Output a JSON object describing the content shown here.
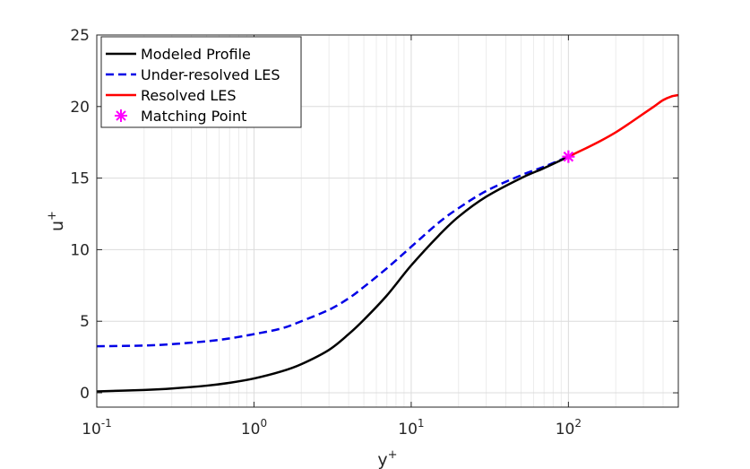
{
  "chart_data": {
    "type": "line",
    "xscale": "log",
    "xlim": [
      0.1,
      500
    ],
    "ylim": [
      -1,
      25
    ],
    "xlabel": "y",
    "xlabel_sup": "+",
    "ylabel": "u",
    "ylabel_sup": "+",
    "grid": true,
    "legend_position": "top-left",
    "x_ticks": [
      {
        "value": 0.1,
        "base": "10",
        "exp": "-1"
      },
      {
        "value": 1,
        "base": "10",
        "exp": "0"
      },
      {
        "value": 10,
        "base": "10",
        "exp": "1"
      },
      {
        "value": 100,
        "base": "10",
        "exp": "2"
      }
    ],
    "y_ticks": [
      0,
      5,
      10,
      15,
      20,
      25
    ],
    "series": [
      {
        "name": "Modeled Profile",
        "color": "#000000",
        "style": "solid",
        "x": [
          0.1,
          0.2,
          0.3,
          0.5,
          0.7,
          1,
          1.5,
          2,
          3,
          4,
          5,
          7,
          10,
          15,
          20,
          30,
          50,
          70,
          100
        ],
        "y": [
          0.1,
          0.2,
          0.3,
          0.5,
          0.7,
          1.0,
          1.5,
          2.0,
          3.0,
          4.1,
          5.1,
          6.8,
          8.9,
          11.0,
          12.3,
          13.7,
          15.0,
          15.7,
          16.5
        ]
      },
      {
        "name": "Under-resolved LES",
        "color": "#0000e6",
        "style": "dashed",
        "x": [
          0.1,
          0.2,
          0.3,
          0.5,
          0.7,
          1,
          1.5,
          2,
          3,
          4,
          5,
          7,
          10,
          15,
          20,
          30,
          50,
          70,
          100
        ],
        "y": [
          3.25,
          3.3,
          3.4,
          3.6,
          3.8,
          4.1,
          4.5,
          5.0,
          5.8,
          6.6,
          7.4,
          8.7,
          10.2,
          11.9,
          12.9,
          14.1,
          15.2,
          15.8,
          16.5
        ]
      },
      {
        "name": "Resolved LES",
        "color": "#ff0000",
        "style": "solid",
        "x": [
          100,
          130,
          160,
          200,
          250,
          300,
          350,
          400,
          450,
          500
        ],
        "y": [
          16.5,
          17.1,
          17.6,
          18.2,
          18.9,
          19.5,
          20.0,
          20.45,
          20.7,
          20.8
        ]
      },
      {
        "name": "Matching Point",
        "color": "#ff00ff",
        "style": "marker",
        "x": [
          100
        ],
        "y": [
          16.5
        ]
      }
    ]
  }
}
